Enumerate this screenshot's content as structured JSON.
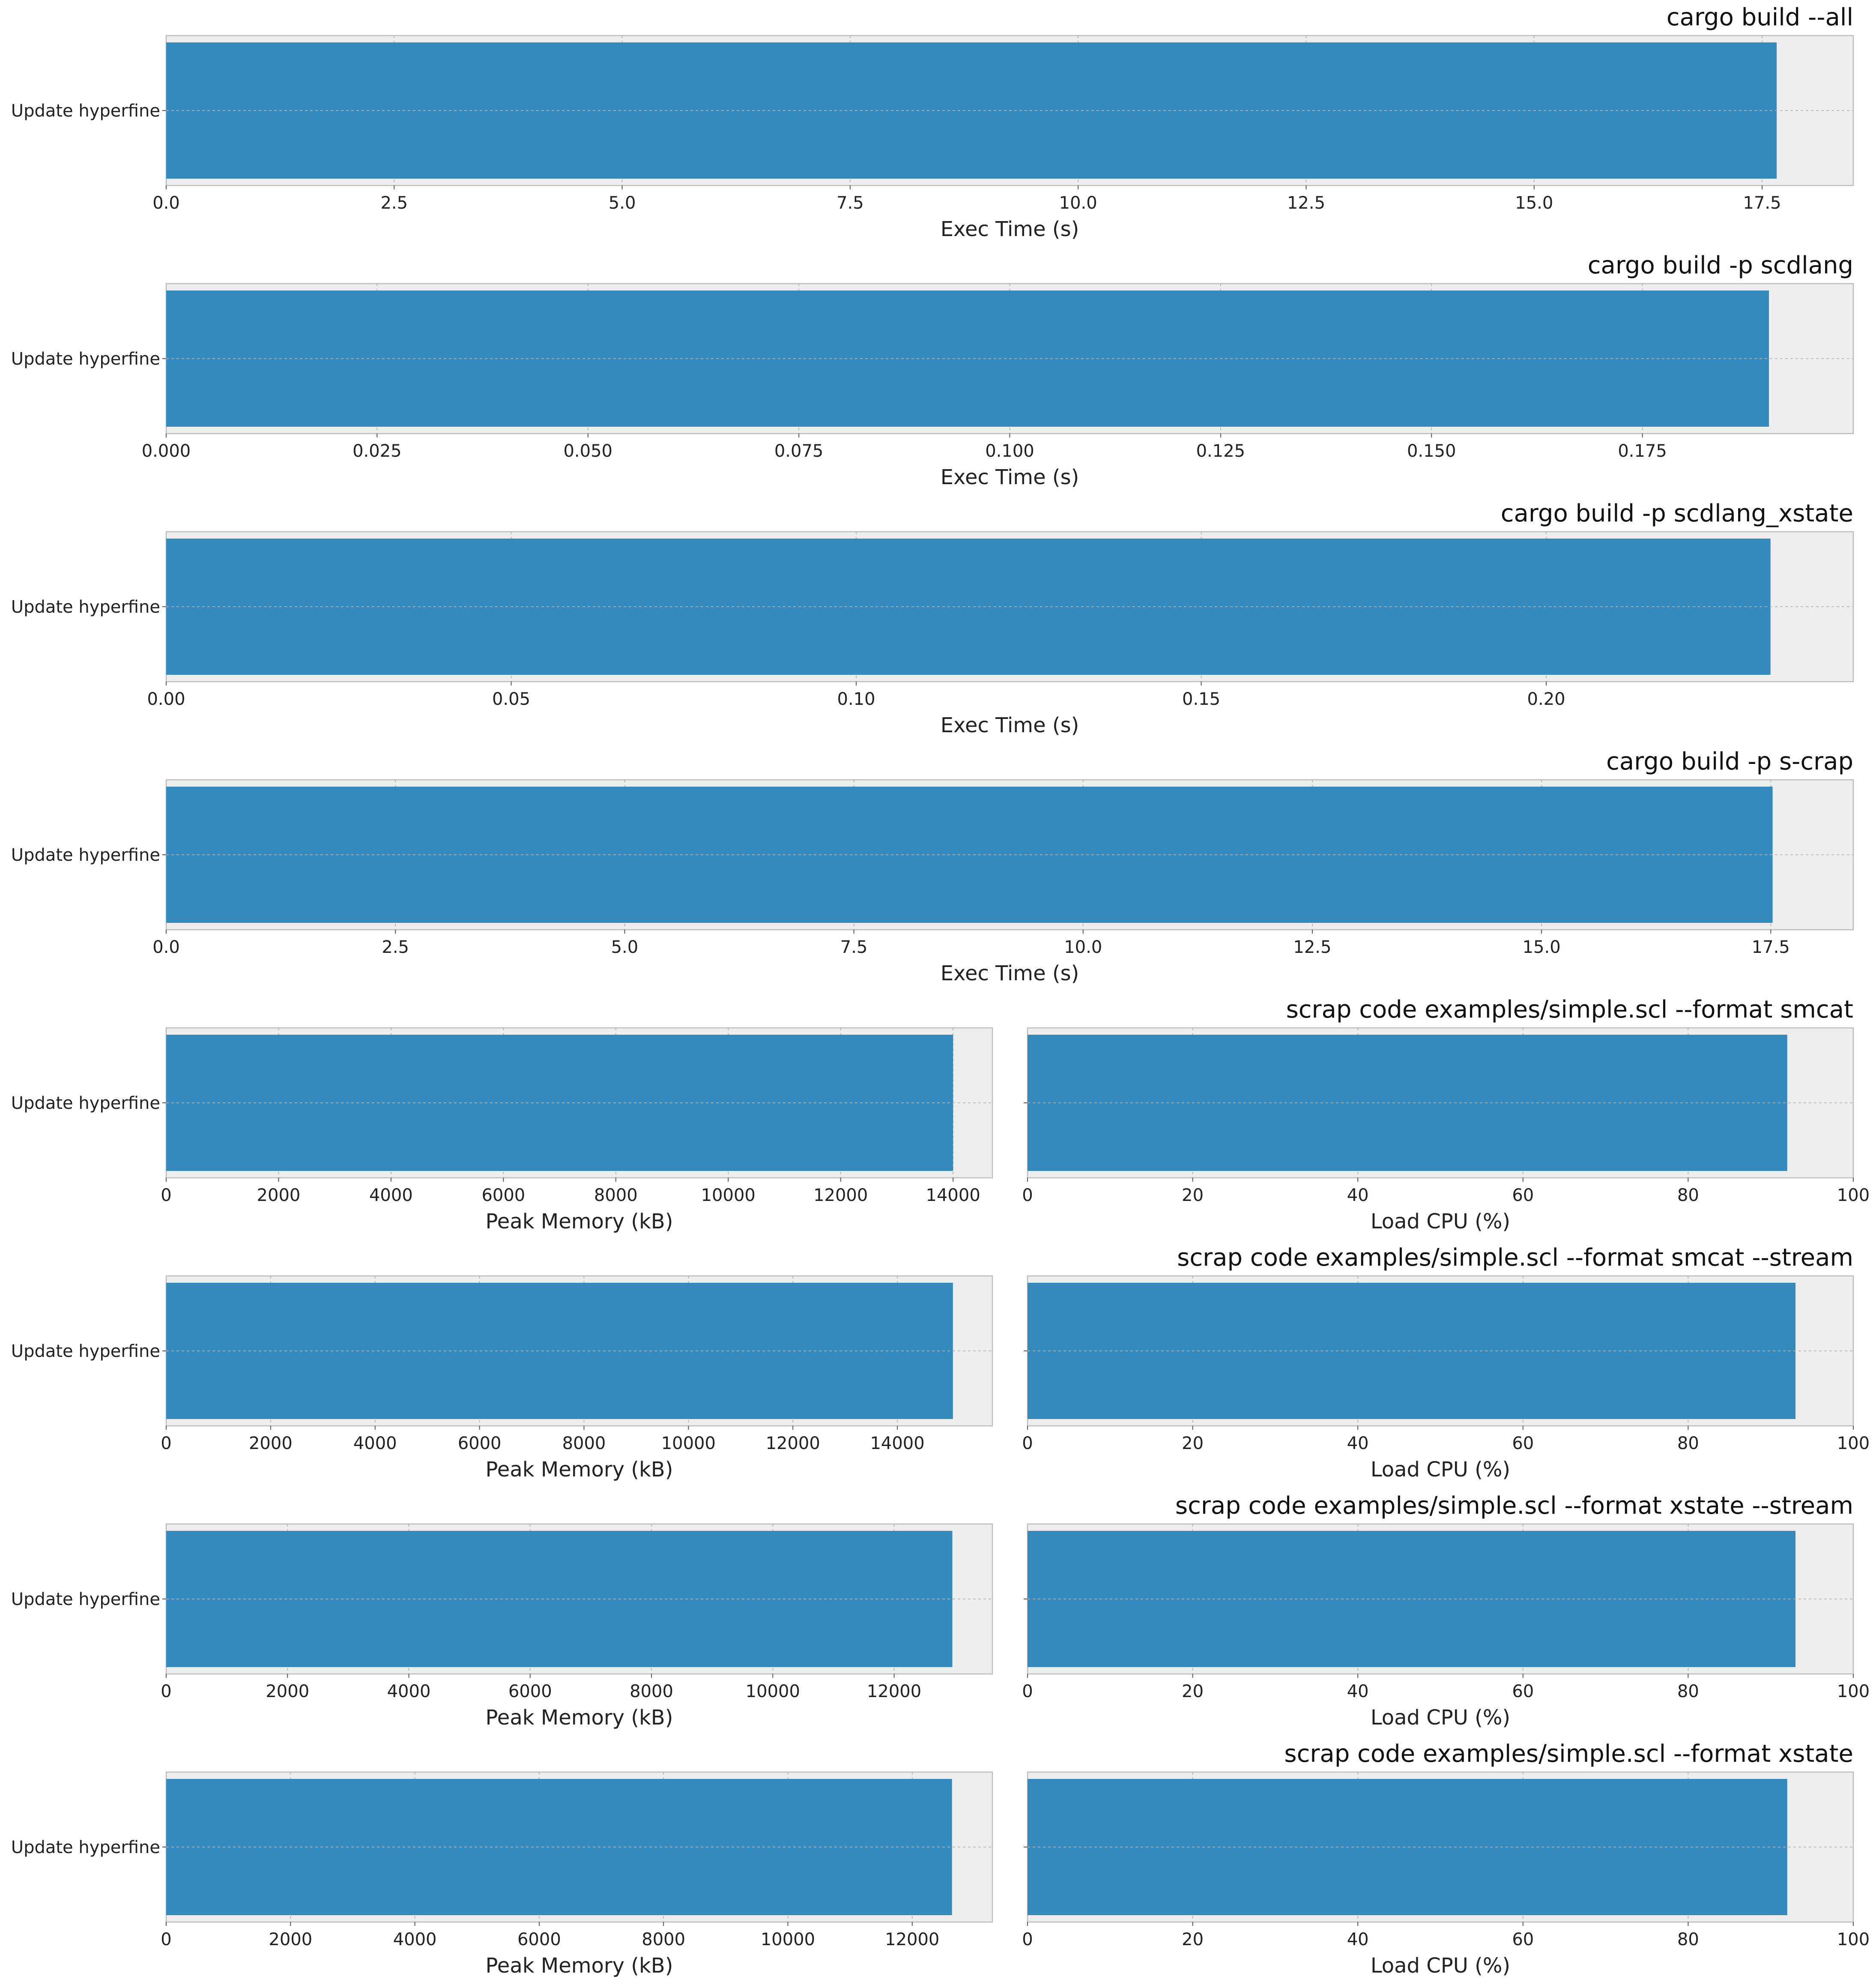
{
  "figure": {
    "background": "#ffffff",
    "plot_background": "#eeeeee",
    "bar_color": "#348abd",
    "grid": true
  },
  "chart_data": [
    {
      "type": "bar",
      "orientation": "horizontal",
      "title": "cargo build --all",
      "categories": [
        "Update hyperfine"
      ],
      "values": [
        17.66
      ],
      "xlabel": "Exec Time (s)",
      "ylabel": "",
      "xlim": [
        0,
        18.5
      ],
      "xticks": [
        0.0,
        2.5,
        5.0,
        7.5,
        10.0,
        12.5,
        15.0,
        17.5
      ],
      "xtick_labels": [
        "0.0",
        "2.5",
        "5.0",
        "7.5",
        "10.0",
        "12.5",
        "15.0",
        "17.5"
      ]
    },
    {
      "type": "bar",
      "orientation": "horizontal",
      "title": "cargo build -p scdlang",
      "categories": [
        "Update hyperfine"
      ],
      "values": [
        0.19
      ],
      "xlabel": "Exec Time (s)",
      "ylabel": "",
      "xlim": [
        0,
        0.2
      ],
      "xticks": [
        0.0,
        0.025,
        0.05,
        0.075,
        0.1,
        0.125,
        0.15,
        0.175
      ],
      "xtick_labels": [
        "0.000",
        "0.025",
        "0.050",
        "0.075",
        "0.100",
        "0.125",
        "0.150",
        "0.175"
      ]
    },
    {
      "type": "bar",
      "orientation": "horizontal",
      "title": "cargo build -p scdlang_xstate",
      "categories": [
        "Update hyperfine"
      ],
      "values": [
        0.2325
      ],
      "xlabel": "Exec Time (s)",
      "ylabel": "",
      "xlim": [
        0,
        0.2445
      ],
      "xticks": [
        0.0,
        0.05,
        0.1,
        0.15,
        0.2
      ],
      "xtick_labels": [
        "0.00",
        "0.05",
        "0.10",
        "0.15",
        "0.20"
      ]
    },
    {
      "type": "bar",
      "orientation": "horizontal",
      "title": "cargo build -p s-crap",
      "categories": [
        "Update hyperfine"
      ],
      "values": [
        17.52
      ],
      "xlabel": "Exec Time (s)",
      "ylabel": "",
      "xlim": [
        0,
        18.4
      ],
      "xticks": [
        0.0,
        2.5,
        5.0,
        7.5,
        10.0,
        12.5,
        15.0,
        17.5
      ],
      "xtick_labels": [
        "0.0",
        "2.5",
        "5.0",
        "7.5",
        "10.0",
        "12.5",
        "15.0",
        "17.5"
      ]
    },
    {
      "type": "bar",
      "orientation": "horizontal",
      "title": "scrap code examples/simple.scl --format smcat",
      "categories": [
        "Update hyperfine"
      ],
      "subplots": [
        {
          "values": [
            14000
          ],
          "xlabel": "Peak Memory (kB)",
          "xlim": [
            0,
            14700
          ],
          "xticks": [
            0,
            2000,
            4000,
            6000,
            8000,
            10000,
            12000,
            14000
          ],
          "xtick_labels": [
            "0",
            "2000",
            "4000",
            "6000",
            "8000",
            "10000",
            "12000",
            "14000"
          ]
        },
        {
          "values": [
            92
          ],
          "xlabel": "Load CPU (%)",
          "xlim": [
            0,
            100
          ],
          "xticks": [
            0,
            20,
            40,
            60,
            80,
            100
          ],
          "xtick_labels": [
            "0",
            "20",
            "40",
            "60",
            "80",
            "100"
          ]
        }
      ]
    },
    {
      "type": "bar",
      "orientation": "horizontal",
      "title": "scrap code examples/simple.scl --format smcat --stream",
      "categories": [
        "Update hyperfine"
      ],
      "subplots": [
        {
          "values": [
            15064
          ],
          "xlabel": "Peak Memory (kB)",
          "xlim": [
            0,
            15820
          ],
          "xticks": [
            0,
            2000,
            4000,
            6000,
            8000,
            10000,
            12000,
            14000
          ],
          "xtick_labels": [
            "0",
            "2000",
            "4000",
            "6000",
            "8000",
            "10000",
            "12000",
            "14000"
          ]
        },
        {
          "values": [
            93
          ],
          "xlabel": "Load CPU (%)",
          "xlim": [
            0,
            100
          ],
          "xticks": [
            0,
            20,
            40,
            60,
            80,
            100
          ],
          "xtick_labels": [
            "0",
            "20",
            "40",
            "60",
            "80",
            "100"
          ]
        }
      ]
    },
    {
      "type": "bar",
      "orientation": "horizontal",
      "title": "scrap code examples/simple.scl --format xstate --stream",
      "categories": [
        "Update hyperfine"
      ],
      "subplots": [
        {
          "values": [
            12960
          ],
          "xlabel": "Peak Memory (kB)",
          "xlim": [
            0,
            13620
          ],
          "xticks": [
            0,
            2000,
            4000,
            6000,
            8000,
            10000,
            12000
          ],
          "xtick_labels": [
            "0",
            "2000",
            "4000",
            "6000",
            "8000",
            "10000",
            "12000"
          ]
        },
        {
          "values": [
            93
          ],
          "xlabel": "Load CPU (%)",
          "xlim": [
            0,
            100
          ],
          "xticks": [
            0,
            20,
            40,
            60,
            80,
            100
          ],
          "xtick_labels": [
            "0",
            "20",
            "40",
            "60",
            "80",
            "100"
          ]
        }
      ]
    },
    {
      "type": "bar",
      "orientation": "horizontal",
      "title": "scrap code examples/simple.scl --format xstate",
      "categories": [
        "Update hyperfine"
      ],
      "subplots": [
        {
          "values": [
            12640
          ],
          "xlabel": "Peak Memory (kB)",
          "xlim": [
            0,
            13290
          ],
          "xticks": [
            0,
            2000,
            4000,
            6000,
            8000,
            10000,
            12000
          ],
          "xtick_labels": [
            "0",
            "2000",
            "4000",
            "6000",
            "8000",
            "10000",
            "12000"
          ]
        },
        {
          "values": [
            92
          ],
          "xlabel": "Load CPU (%)",
          "xlim": [
            0,
            100
          ],
          "xticks": [
            0,
            20,
            40,
            60,
            80,
            100
          ],
          "xtick_labels": [
            "0",
            "20",
            "40",
            "60",
            "80",
            "100"
          ]
        }
      ]
    }
  ]
}
